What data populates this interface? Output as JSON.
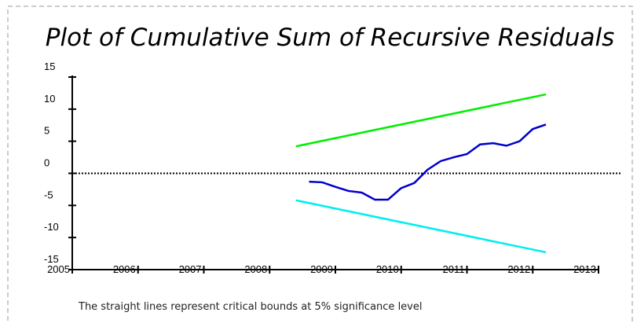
{
  "chart_data": {
    "type": "line",
    "title": "Plot of Cumulative Sum of Recursive Residuals",
    "note": "The straight lines represent critical bounds at 5% significance level",
    "xlim": [
      2005,
      2013
    ],
    "xticks": [
      2005,
      2006,
      2007,
      2008,
      2009,
      2010,
      2011,
      2012,
      2013
    ],
    "ylim": [
      -15,
      15
    ],
    "yticks": [
      15,
      10,
      5,
      0,
      -5,
      -10,
      -15
    ],
    "reference_line": {
      "value": 0,
      "color": "#000000",
      "style": "dotted"
    },
    "series": [
      {
        "color": "#00ee00",
        "x": [
          2008.4,
          2012.2
        ],
        "values": [
          4.2,
          12.3
        ]
      },
      {
        "color": "#00eeee",
        "x": [
          2008.4,
          2012.2
        ],
        "values": [
          -4.2,
          -12.3
        ]
      },
      {
        "color": "#0000cc",
        "x": [
          2008.6,
          2008.8,
          2009.0,
          2009.2,
          2009.4,
          2009.6,
          2009.8,
          2010.0,
          2010.2,
          2010.4,
          2010.6,
          2010.8,
          2011.0,
          2011.2,
          2011.4,
          2011.6,
          2011.8,
          2012.0,
          2012.2
        ],
        "values": [
          -1.3,
          -1.4,
          -2.1,
          -2.75,
          -3.0,
          -4.1,
          -4.1,
          -2.3,
          -1.5,
          0.55,
          1.9,
          2.5,
          3.0,
          4.5,
          4.7,
          4.3,
          5.0,
          6.9,
          7.6
        ]
      }
    ]
  }
}
